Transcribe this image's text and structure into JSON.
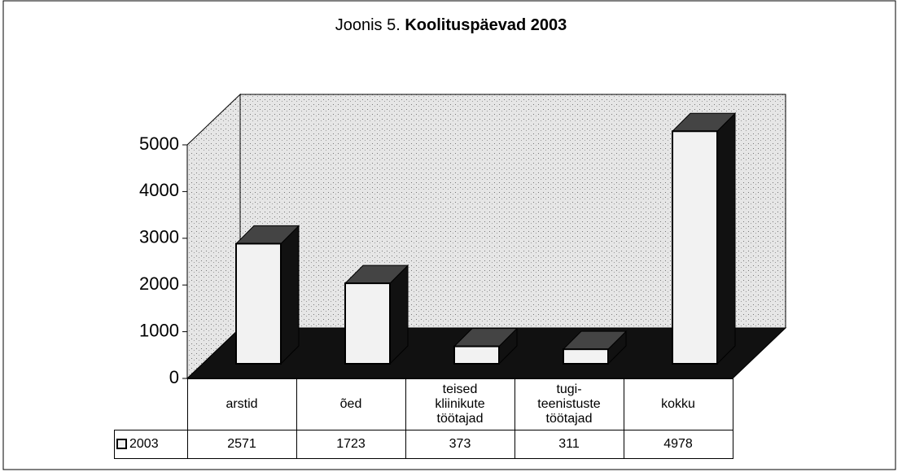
{
  "chart_data": {
    "type": "bar3d",
    "title": [
      "Joonis 5.",
      "Koolituspäevad 2003"
    ],
    "categories": [
      "arstid",
      "õed",
      "teised kliinikute töötajad",
      "tugi-teenistuste töötajad",
      "kokku"
    ],
    "series": [
      {
        "name": "2003",
        "color": "#f2f2f2",
        "values": [
          2571,
          1723,
          373,
          311,
          4978
        ]
      }
    ],
    "ylim": [
      0,
      5000
    ],
    "yticks": [
      0,
      1000,
      2000,
      3000,
      4000,
      5000
    ]
  }
}
